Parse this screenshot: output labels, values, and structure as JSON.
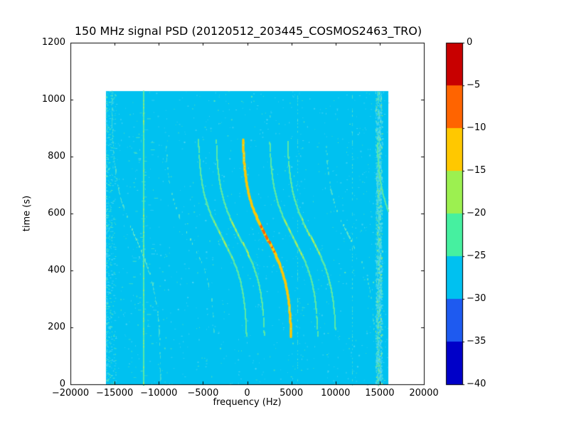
{
  "title": "150 MHz signal PSD (20120512_203445_COSMOS2463_TRO)",
  "axes": {
    "x": {
      "label": "frequency (Hz)",
      "min": -20000,
      "max": 20000,
      "ticks": [
        {
          "value": -20000,
          "label": "−20000"
        },
        {
          "value": -15000,
          "label": "−15000"
        },
        {
          "value": -10000,
          "label": "−10000"
        },
        {
          "value": -5000,
          "label": "−5000"
        },
        {
          "value": 0,
          "label": "0"
        },
        {
          "value": 5000,
          "label": "5000"
        },
        {
          "value": 10000,
          "label": "10000"
        },
        {
          "value": 15000,
          "label": "15000"
        },
        {
          "value": 20000,
          "label": "20000"
        }
      ]
    },
    "y": {
      "label": "time (s)",
      "min": 0,
      "max": 1200,
      "ticks": [
        {
          "value": 0,
          "label": "0"
        },
        {
          "value": 200,
          "label": "200"
        },
        {
          "value": 400,
          "label": "400"
        },
        {
          "value": 600,
          "label": "600"
        },
        {
          "value": 800,
          "label": "800"
        },
        {
          "value": 1000,
          "label": "1000"
        },
        {
          "value": 1200,
          "label": "1200"
        }
      ]
    }
  },
  "colorbar": {
    "max": 0,
    "min": -40,
    "tick_labels": [
      "0",
      "−5",
      "−10",
      "−15",
      "−20",
      "−25",
      "−30",
      "−35",
      "−40"
    ],
    "tick_values": [
      0,
      -5,
      -10,
      -15,
      -20,
      -25,
      -30,
      -35,
      -40
    ],
    "segments": [
      {
        "from": 0,
        "to": -5,
        "color": "#C80000"
      },
      {
        "from": -5,
        "to": -10,
        "color": "#FF6400"
      },
      {
        "from": -10,
        "to": -15,
        "color": "#FFC800"
      },
      {
        "from": -15,
        "to": -20,
        "color": "#9CF050"
      },
      {
        "from": -20,
        "to": -25,
        "color": "#46F0A0"
      },
      {
        "from": -25,
        "to": -30,
        "color": "#00C1F0"
      },
      {
        "from": -30,
        "to": -35,
        "color": "#1E5AF0"
      },
      {
        "from": -35,
        "to": -40,
        "color": "#0000C8"
      }
    ]
  },
  "chart_data": {
    "type": "heatmap",
    "title": "150 MHz signal PSD (20120512_203445_COSMOS2463_TRO)",
    "xlabel": "frequency (Hz)",
    "ylabel": "time (s)",
    "xlim": [
      -20000,
      20000
    ],
    "ylim": [
      0,
      1200
    ],
    "grid": false,
    "legend": "colorbar-right",
    "data_extent": {
      "freq_hz": [
        -16000,
        16000
      ],
      "time_s": [
        0,
        1030
      ]
    },
    "background_level_db": -28,
    "background_color": "#00C1F0",
    "palette": {
      "speckle_cyan": "#4FD7F4",
      "speckle_green": "#5FE8B4",
      "curve_green": "#5AE8A5",
      "curve_green_accent": "#A5EE5F",
      "curve_faint": "#6EE8C0",
      "curve_gold": "#FFC800",
      "curve_orangered": "#FF6400",
      "curve_gold_end": "#BCE85F"
    },
    "doppler_model": "f(t) = center_hz - amplitude_hz * tanh((t - t_mid_s)/tau_s)",
    "doppler_curves": [
      {
        "center_hz": -12600,
        "amplitude_hz": 2800,
        "t_mid_s": 510,
        "tau_s": 200,
        "t_start_s": 0,
        "t_end_s": 1030,
        "intensity": "faint"
      },
      {
        "center_hz": -6500,
        "amplitude_hz": 2800,
        "t_mid_s": 512,
        "tau_s": 165,
        "t_start_s": 185,
        "t_end_s": 845,
        "intensity": "very_faint"
      },
      {
        "center_hz": -2780,
        "amplitude_hz": 2800,
        "t_mid_s": 512,
        "tau_s": 165,
        "t_start_s": 172,
        "t_end_s": 858,
        "intensity": "normal"
      },
      {
        "center_hz": -770,
        "amplitude_hz": 2800,
        "t_mid_s": 512,
        "tau_s": 165,
        "t_start_s": 170,
        "t_end_s": 855,
        "intensity": "normal"
      },
      {
        "center_hz": 2260,
        "amplitude_hz": 2800,
        "t_mid_s": 512,
        "tau_s": 165,
        "t_start_s": 168,
        "t_end_s": 860,
        "intensity": "strong"
      },
      {
        "center_hz": 5280,
        "amplitude_hz": 2800,
        "t_mid_s": 512,
        "tau_s": 165,
        "t_start_s": 172,
        "t_end_s": 848,
        "intensity": "normal"
      },
      {
        "center_hz": 7300,
        "amplitude_hz": 2800,
        "t_mid_s": 512,
        "tau_s": 165,
        "t_start_s": 195,
        "t_end_s": 852,
        "intensity": "normal"
      },
      {
        "center_hz": 11600,
        "amplitude_hz": 2800,
        "t_mid_s": 512,
        "tau_s": 165,
        "t_start_s": 180,
        "t_end_s": 850,
        "intensity": "very_faint"
      },
      {
        "center_hz": 17450,
        "amplitude_hz": 2800,
        "t_mid_s": 512,
        "tau_s": 165,
        "t_start_s": 600,
        "t_end_s": 858,
        "intensity": "medium"
      }
    ],
    "vertical_lines": [
      {
        "freq_hz": -11700,
        "style": "solid",
        "strength": "bright"
      },
      {
        "freq_hz": 5700,
        "style": "dashed",
        "strength": "faint"
      },
      {
        "freq_hz": 11900,
        "style": "dashed",
        "strength": "faint"
      }
    ],
    "noise_band": {
      "freq_center_hz": 14800,
      "width_hz": 1100,
      "density": "high"
    },
    "left_edge_noise_band": {
      "freq_from_hz": -16000,
      "freq_to_hz": -14900,
      "density": "medium"
    }
  }
}
